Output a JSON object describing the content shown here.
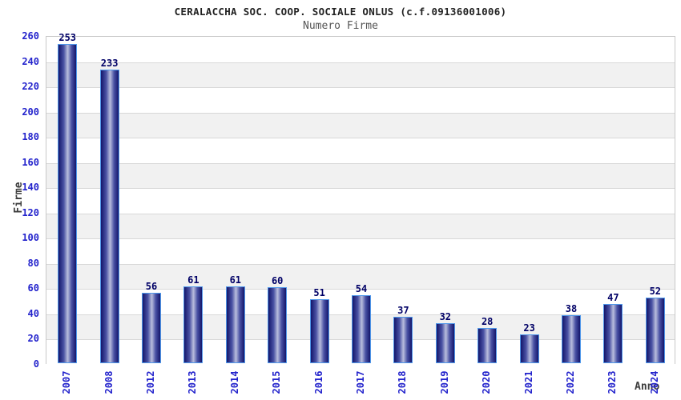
{
  "header": {
    "title": "CERALACCHA SOC. COOP. SOCIALE ONLUS (c.f.09136001006)",
    "subtitle": "Numero Firme"
  },
  "chart_data": {
    "type": "bar",
    "title": "CERALACCHA SOC. COOP. SOCIALE ONLUS (c.f.09136001006)",
    "subtitle": "Numero Firme",
    "xlabel": "Anno",
    "ylabel": "Firme",
    "categories": [
      "2007",
      "2008",
      "2012",
      "2013",
      "2014",
      "2015",
      "2016",
      "2017",
      "2018",
      "2019",
      "2020",
      "2021",
      "2022",
      "2023",
      "2024"
    ],
    "values": [
      253,
      233,
      56,
      61,
      61,
      60,
      51,
      54,
      37,
      32,
      28,
      23,
      38,
      47,
      52
    ],
    "ylim": [
      0,
      260
    ],
    "ytick_step": 20,
    "grid": true,
    "legend": false,
    "colors": {
      "tick_label": "#2323cc",
      "value_label": "#000066",
      "bar_border": "#4f97ea",
      "bar_dark": "#14166b",
      "bar_mid": "#4a52a4",
      "bar_light": "#b9bedd",
      "band_gray": "#f1f1f1",
      "band_white": "#ffffff",
      "gridline": "#d8d8d8",
      "plot_border": "#c8c8c8",
      "title_color": "#222222",
      "subtitle_color": "#555555",
      "axis_label_color": "#3d3d3d",
      "background": "#ffffff"
    }
  }
}
